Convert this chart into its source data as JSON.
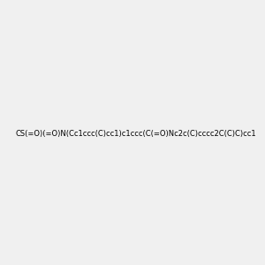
{
  "smiles": "CS(=O)(=O)N(Cc1ccc(C)cc1)c1ccc(C(=O)Nc2c(C)cccc2C(C)C)cc1",
  "img_size": [
    300,
    300
  ],
  "background_color": "#f0f0f0",
  "title": ""
}
